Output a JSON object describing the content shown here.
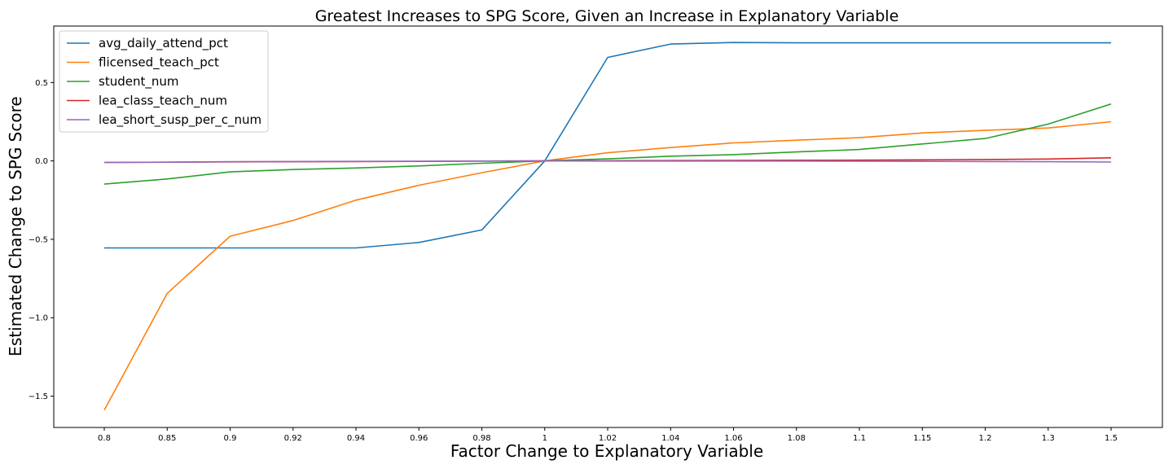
{
  "chart_data": {
    "type": "line",
    "title": "Greatest Increases to SPG Score, Given an Increase in Explanatory Variable",
    "xlabel": "Factor Change to Explanatory Variable",
    "ylabel": "Estimated Change to SPG Score",
    "categories": [
      "0.8",
      "0.85",
      "0.9",
      "0.92",
      "0.94",
      "0.96",
      "0.98",
      "1",
      "1.02",
      "1.04",
      "1.06",
      "1.08",
      "1.1",
      "1.15",
      "1.2",
      "1.3",
      "1.5"
    ],
    "y_ticks": [
      0.5,
      0.0,
      -0.5,
      -1.0,
      -1.5
    ],
    "y_tick_labels": [
      "0.5",
      "0.0",
      "−0.5",
      "−1.0",
      "−1.5"
    ],
    "ylim": [
      -1.7,
      0.86
    ],
    "grid": false,
    "legend_position": "top-left",
    "series": [
      {
        "name": "avg_daily_attend_pct",
        "color": "#1f77b4",
        "values": [
          -0.555,
          -0.555,
          -0.555,
          -0.555,
          -0.555,
          -0.52,
          -0.44,
          0.0,
          0.66,
          0.745,
          0.755,
          0.753,
          0.753,
          0.753,
          0.753,
          0.753,
          0.753
        ]
      },
      {
        "name": "flicensed_teach_pct",
        "color": "#ff7f0e",
        "values": [
          -1.59,
          -0.845,
          -0.48,
          -0.38,
          -0.25,
          -0.155,
          -0.075,
          0.0,
          0.052,
          0.085,
          0.115,
          0.132,
          0.148,
          0.178,
          0.195,
          0.21,
          0.25
        ]
      },
      {
        "name": "student_num",
        "color": "#2ca02c",
        "values": [
          -0.148,
          -0.115,
          -0.07,
          -0.055,
          -0.045,
          -0.032,
          -0.015,
          0.0,
          0.013,
          0.03,
          0.04,
          0.057,
          0.073,
          0.108,
          0.143,
          0.235,
          0.363
        ]
      },
      {
        "name": "lea_class_teach_num",
        "color": "#d62728",
        "values": [
          -0.01,
          -0.008,
          -0.006,
          -0.005,
          -0.004,
          -0.003,
          -0.001,
          0.0,
          0.001,
          0.002,
          0.003,
          0.004,
          0.005,
          0.007,
          0.009,
          0.012,
          0.02
        ]
      },
      {
        "name": "lea_short_susp_per_c_num",
        "color": "#9467bd",
        "values": [
          -0.01,
          -0.008,
          -0.005,
          -0.004,
          -0.003,
          -0.002,
          -0.001,
          0.0,
          -0.001,
          -0.001,
          -0.001,
          -0.001,
          -0.002,
          -0.003,
          -0.004,
          -0.005,
          -0.007
        ]
      }
    ]
  }
}
